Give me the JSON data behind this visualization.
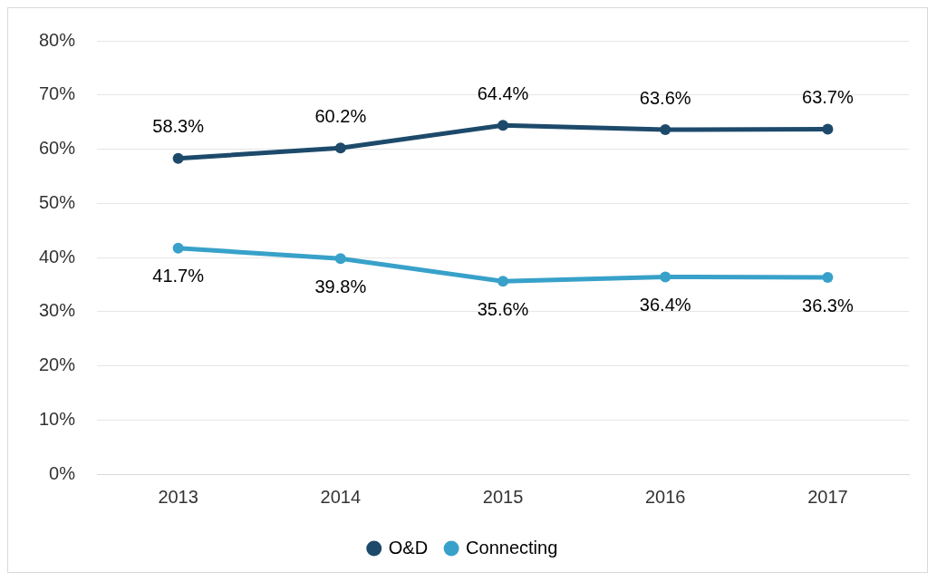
{
  "chart_data": {
    "type": "line",
    "categories": [
      "2013",
      "2014",
      "2015",
      "2016",
      "2017"
    ],
    "series": [
      {
        "name": "O&D",
        "color": "#1d4a6b",
        "values": [
          58.3,
          60.2,
          64.4,
          63.6,
          63.7
        ],
        "value_labels": [
          "58.3%",
          "60.2%",
          "64.4%",
          "63.6%",
          "63.7%"
        ]
      },
      {
        "name": "Connecting",
        "color": "#38a1c9",
        "values": [
          41.7,
          39.8,
          35.6,
          36.4,
          36.3
        ],
        "value_labels": [
          "41.7%",
          "39.8%",
          "35.6%",
          "36.4%",
          "36.3%"
        ]
      }
    ],
    "ylim": [
      0,
      80
    ],
    "yticks": [
      {
        "value": 0,
        "label": "0%"
      },
      {
        "value": 10,
        "label": "10%"
      },
      {
        "value": 20,
        "label": "20%"
      },
      {
        "value": 30,
        "label": "30%"
      },
      {
        "value": 40,
        "label": "40%"
      },
      {
        "value": 50,
        "label": "50%"
      },
      {
        "value": 60,
        "label": "60%"
      },
      {
        "value": 70,
        "label": "70%"
      },
      {
        "value": 80,
        "label": "80%"
      }
    ],
    "grid": "y",
    "legend": "bottom",
    "marker": "circle",
    "line_style": "solid"
  }
}
